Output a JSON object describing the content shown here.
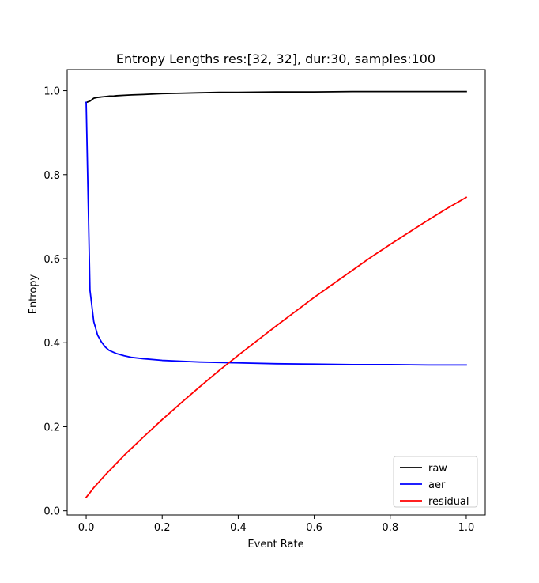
{
  "chart_data": {
    "type": "line",
    "title": "Entropy Lengths res:[32, 32], dur:30, samples:100",
    "xlabel": "Event Rate",
    "ylabel": "Entropy",
    "xlim": [
      -0.05,
      1.05
    ],
    "ylim": [
      -0.01,
      1.05
    ],
    "xticks": [
      0.0,
      0.2,
      0.4,
      0.6,
      0.8,
      1.0
    ],
    "xtick_labels": [
      "0.0",
      "0.2",
      "0.4",
      "0.6",
      "0.8",
      "1.0"
    ],
    "yticks": [
      0.0,
      0.2,
      0.4,
      0.6,
      0.8,
      1.0
    ],
    "ytick_labels": [
      "0.0",
      "0.2",
      "0.4",
      "0.6",
      "0.8",
      "1.0"
    ],
    "grid": false,
    "legend_position": "lower-right",
    "series": [
      {
        "name": "raw",
        "color": "#000000",
        "x": [
          0.0,
          0.01,
          0.02,
          0.03,
          0.04,
          0.05,
          0.06,
          0.07,
          0.08,
          0.1,
          0.12,
          0.15,
          0.2,
          0.25,
          0.3,
          0.35,
          0.4,
          0.5,
          0.6,
          0.7,
          0.8,
          0.9,
          1.0
        ],
        "y": [
          0.972,
          0.975,
          0.982,
          0.984,
          0.985,
          0.986,
          0.987,
          0.987,
          0.988,
          0.989,
          0.99,
          0.991,
          0.993,
          0.994,
          0.995,
          0.996,
          0.996,
          0.997,
          0.997,
          0.998,
          0.998,
          0.998,
          0.998
        ]
      },
      {
        "name": "aer",
        "color": "#0000ff",
        "x": [
          0.0,
          0.01,
          0.02,
          0.03,
          0.04,
          0.05,
          0.06,
          0.07,
          0.08,
          0.1,
          0.12,
          0.15,
          0.2,
          0.25,
          0.3,
          0.4,
          0.5,
          0.6,
          0.7,
          0.8,
          0.9,
          1.0
        ],
        "y": [
          0.972,
          0.525,
          0.45,
          0.418,
          0.402,
          0.39,
          0.382,
          0.378,
          0.374,
          0.369,
          0.365,
          0.362,
          0.358,
          0.356,
          0.354,
          0.352,
          0.35,
          0.349,
          0.348,
          0.348,
          0.347,
          0.347
        ]
      },
      {
        "name": "residual",
        "color": "#ff0000",
        "x": [
          0.0,
          0.01,
          0.02,
          0.03,
          0.05,
          0.1,
          0.15,
          0.2,
          0.25,
          0.3,
          0.35,
          0.4,
          0.45,
          0.5,
          0.55,
          0.6,
          0.65,
          0.7,
          0.75,
          0.8,
          0.85,
          0.9,
          0.95,
          1.0
        ],
        "y": [
          0.032,
          0.043,
          0.055,
          0.065,
          0.085,
          0.132,
          0.175,
          0.217,
          0.257,
          0.296,
          0.334,
          0.37,
          0.405,
          0.44,
          0.474,
          0.508,
          0.54,
          0.572,
          0.604,
          0.634,
          0.663,
          0.692,
          0.72,
          0.746
        ]
      }
    ]
  }
}
